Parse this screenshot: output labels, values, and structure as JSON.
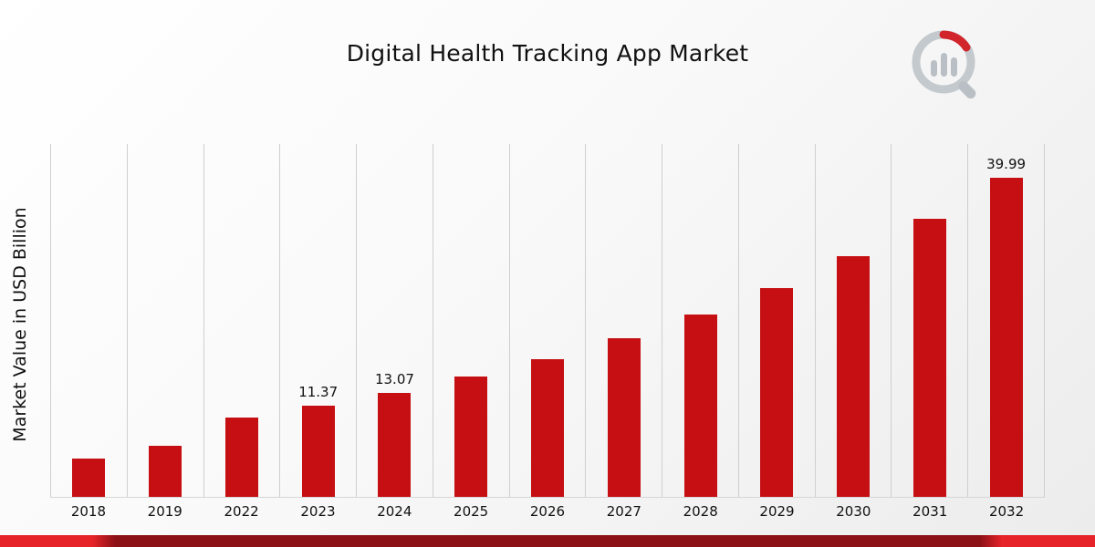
{
  "page": {
    "title": "Digital Health Tracking App Market"
  },
  "chart_data": {
    "type": "bar",
    "title": "Digital Health Tracking App Market",
    "xlabel": "",
    "ylabel": "Market Value in USD Billion",
    "categories": [
      "2018",
      "2019",
      "2022",
      "2023",
      "2024",
      "2025",
      "2026",
      "2027",
      "2028",
      "2029",
      "2030",
      "2031",
      "2032"
    ],
    "values": [
      4.8,
      6.4,
      9.9,
      11.37,
      13.07,
      15.1,
      17.2,
      19.9,
      22.8,
      26.1,
      30.2,
      34.8,
      39.99
    ],
    "bar_labels": [
      "",
      "",
      "",
      "11.37",
      "13.07",
      "",
      "",
      "",
      "",
      "",
      "",
      "",
      "39.99"
    ],
    "ylim": [
      0,
      44.2
    ],
    "bar_color": "#c50f13",
    "grid": "vertical-only",
    "legend": "none"
  },
  "footer": {
    "strip_color_bright": "#e52329",
    "strip_color_dark": "#8c1117"
  },
  "brand": {
    "logo_name": "bar-chart-magnifier-logo",
    "logo_gray": "#b9bfc4",
    "logo_red": "#d2252b"
  }
}
